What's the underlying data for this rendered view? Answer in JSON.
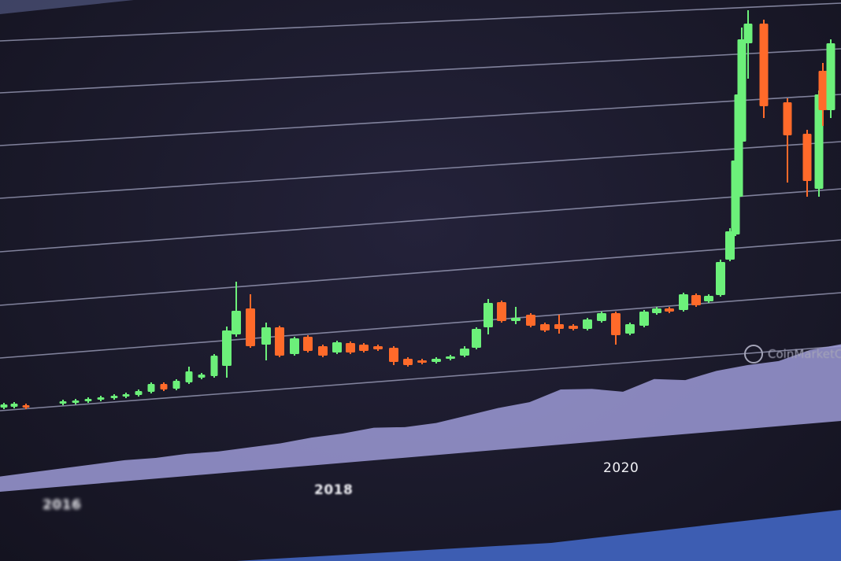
{
  "chart_data": {
    "type": "candlestick",
    "title": "",
    "xlabel": "",
    "ylabel": "",
    "x_tick_labels": [
      "2016",
      "2018",
      "2020"
    ],
    "grid": true,
    "watermark": "CoinMarketCap",
    "colors": {
      "up": "#6cf07a",
      "down": "#ff6a2a",
      "grid": "#9a9cb8",
      "volume": "#9c9ad6",
      "background": "#1b1a2b"
    },
    "candles_ohlc_relative": [
      [
        8.4,
        9.6,
        8,
        9.2
      ],
      [
        8.6,
        9.8,
        8.2,
        9.4
      ],
      [
        9.0,
        9.4,
        8,
        8.4
      ],
      [
        9.4,
        10.4,
        9,
        10.0
      ],
      [
        9.6,
        10.6,
        9.2,
        10.2
      ],
      [
        10.0,
        11,
        9.6,
        10.6
      ],
      [
        10.4,
        11.4,
        10,
        11.0
      ],
      [
        10.8,
        11.8,
        10.4,
        11.4
      ],
      [
        11.2,
        12.2,
        10.8,
        11.8
      ],
      [
        11.6,
        13,
        11.2,
        12.6
      ],
      [
        12.4,
        14.8,
        12,
        14.4
      ],
      [
        14.4,
        14.8,
        12.6,
        13.0
      ],
      [
        13.2,
        15.6,
        12.8,
        15.2
      ],
      [
        14.8,
        18.8,
        14.4,
        17.6
      ],
      [
        16.0,
        17.2,
        15.6,
        16.8
      ],
      [
        16.4,
        22,
        16,
        21.6
      ],
      [
        19.0,
        29.0,
        16,
        28.0
      ],
      [
        27.0,
        40.4,
        26.4,
        33.0
      ],
      [
        33.6,
        37.2,
        23.6,
        24.0
      ],
      [
        24.4,
        30,
        20.4,
        28.8
      ],
      [
        28.8,
        29.2,
        21.2,
        21.6
      ],
      [
        22.0,
        26.4,
        21.6,
        26.0
      ],
      [
        26.4,
        26.8,
        22.4,
        22.8
      ],
      [
        24.0,
        24.4,
        21.2,
        21.6
      ],
      [
        22.4,
        25.4,
        22,
        25.0
      ],
      [
        24.8,
        25.2,
        22,
        22.4
      ],
      [
        24.4,
        24.8,
        22.4,
        22.8
      ],
      [
        24.0,
        24.4,
        22.8,
        23.2
      ],
      [
        23.6,
        24,
        19.2,
        20.0
      ],
      [
        20.8,
        21.2,
        18.8,
        19.2
      ],
      [
        20.4,
        20.8,
        19.4,
        19.8
      ],
      [
        20.0,
        21.2,
        19.6,
        20.8
      ],
      [
        20.8,
        21.8,
        20.4,
        21.4
      ],
      [
        21.6,
        24,
        21.2,
        23.4
      ],
      [
        23.6,
        28.8,
        23.2,
        28.4
      ],
      [
        28.8,
        36,
        27,
        35.0
      ],
      [
        35.2,
        35.6,
        30,
        30.4
      ],
      [
        30.4,
        34,
        29.6,
        31.2
      ],
      [
        32.0,
        32.4,
        28.8,
        29.2
      ],
      [
        29.6,
        30,
        27.6,
        28.0
      ],
      [
        29.6,
        32,
        27.2,
        28.4
      ],
      [
        29.2,
        29.6,
        28,
        28.4
      ],
      [
        28.4,
        31.2,
        28,
        30.8
      ],
      [
        30.4,
        32.8,
        30,
        32.4
      ],
      [
        32.4,
        32.8,
        24.4,
        26.8
      ],
      [
        27.2,
        30,
        26.8,
        29.6
      ],
      [
        29.2,
        33.2,
        28.8,
        32.8
      ],
      [
        32.4,
        34,
        32,
        33.6
      ],
      [
        33.6,
        34,
        32.4,
        32.8
      ],
      [
        33.2,
        37.6,
        32.8,
        37.2
      ],
      [
        37.0,
        37.4,
        34,
        34.4
      ],
      [
        35.4,
        37.2,
        35,
        36.8
      ],
      [
        37.0,
        46,
        36.6,
        45.4
      ],
      [
        46.0,
        54,
        45.6,
        53.2
      ],
      [
        52.4,
        79,
        52,
        71.2
      ],
      [
        62,
        89,
        61,
        88
      ],
      [
        76,
        105,
        75,
        102
      ],
      [
        101,
        109.4,
        92,
        106
      ],
      [
        106,
        107,
        82,
        85
      ],
      [
        86,
        87,
        65.6,
        77.6
      ],
      [
        78,
        79,
        62,
        66
      ],
      [
        64,
        89,
        62,
        88
      ],
      [
        94,
        96,
        80,
        84
      ],
      [
        84,
        102,
        82,
        101
      ]
    ],
    "volume_relative": [
      2,
      3,
      4,
      5,
      6,
      6,
      7,
      7,
      8,
      9,
      11,
      12,
      14,
      13,
      14,
      17,
      20,
      22,
      28,
      27,
      24,
      30,
      28,
      32,
      34,
      35,
      40,
      42
    ]
  }
}
